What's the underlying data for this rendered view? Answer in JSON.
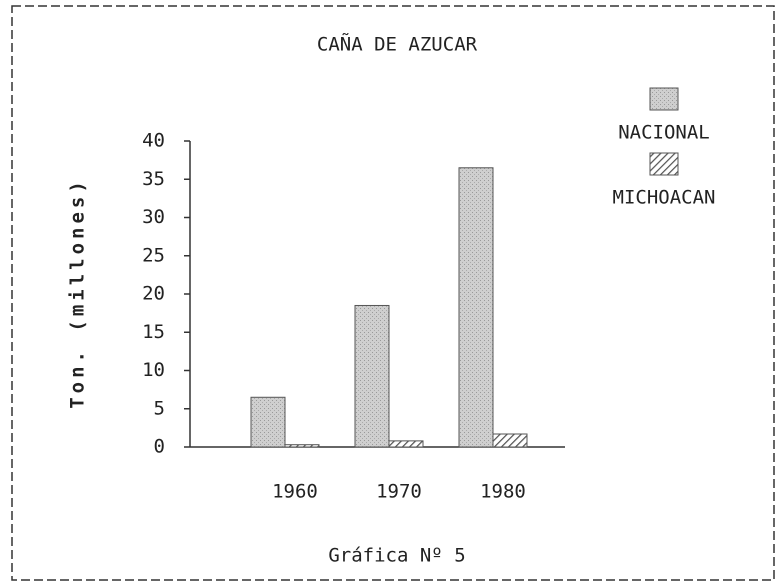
{
  "chart_data": {
    "type": "bar",
    "title": "CAÑA DE AZUCAR",
    "ylabel": "Ton. (millones)",
    "caption": "Gráfica Nº 5",
    "categories": [
      "1960",
      "1970",
      "1980"
    ],
    "series": [
      {
        "name": "NACIONAL",
        "color": "#cfcfcf",
        "values": [
          6.5,
          18.5,
          36.5
        ]
      },
      {
        "name": "MICHOACAN",
        "color": "#555555",
        "values": [
          0.3,
          0.8,
          1.7
        ]
      }
    ],
    "ylim": [
      0,
      40
    ],
    "yticks": [
      0,
      5,
      10,
      15,
      20,
      25,
      30,
      35,
      40
    ],
    "legend": "upper right",
    "grid": false
  }
}
